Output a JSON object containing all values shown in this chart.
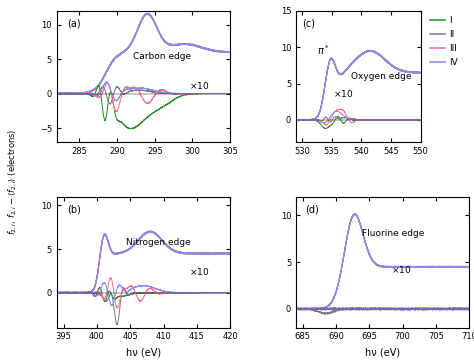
{
  "colors": {
    "I": "#228B22",
    "II": "#7B7B7B",
    "III": "#FF6688",
    "IV": "#8888EE"
  },
  "legend_labels": [
    "I",
    "II",
    "III",
    "IV"
  ],
  "panels": {
    "a": {
      "label": "(a)",
      "edge_label": "Carbon edge",
      "xlim": [
        282,
        305
      ],
      "xticks": [
        285,
        290,
        295,
        300,
        305
      ],
      "ylim": [
        -7,
        12
      ],
      "yticks": [
        -5,
        0,
        5,
        10
      ]
    },
    "b": {
      "label": "(b)",
      "edge_label": "Nitrogen edge",
      "xlim": [
        394,
        420
      ],
      "xticks": [
        395,
        400,
        405,
        410,
        415,
        420
      ],
      "ylim": [
        -4,
        11
      ],
      "yticks": [
        0,
        5,
        10
      ]
    },
    "c": {
      "label": "(c)",
      "edge_label": "Oxygen edge",
      "xlim": [
        529,
        550
      ],
      "xticks": [
        530,
        535,
        540,
        545,
        550
      ],
      "ylim": [
        -3,
        15
      ],
      "yticks": [
        0,
        5,
        10,
        15
      ]
    },
    "d": {
      "label": "(d)",
      "edge_label": "Fluorine edge",
      "xlim": [
        684,
        710
      ],
      "xticks": [
        685,
        690,
        695,
        700,
        705,
        710
      ],
      "ylim": [
        -2,
        12
      ],
      "yticks": [
        0,
        5,
        10
      ]
    }
  },
  "ylabel": "$f_{2,i},\\, f_{2,i} - \\langle f_{2,i}\\rangle$ (electrons)",
  "xlabel": "hν (eV)"
}
